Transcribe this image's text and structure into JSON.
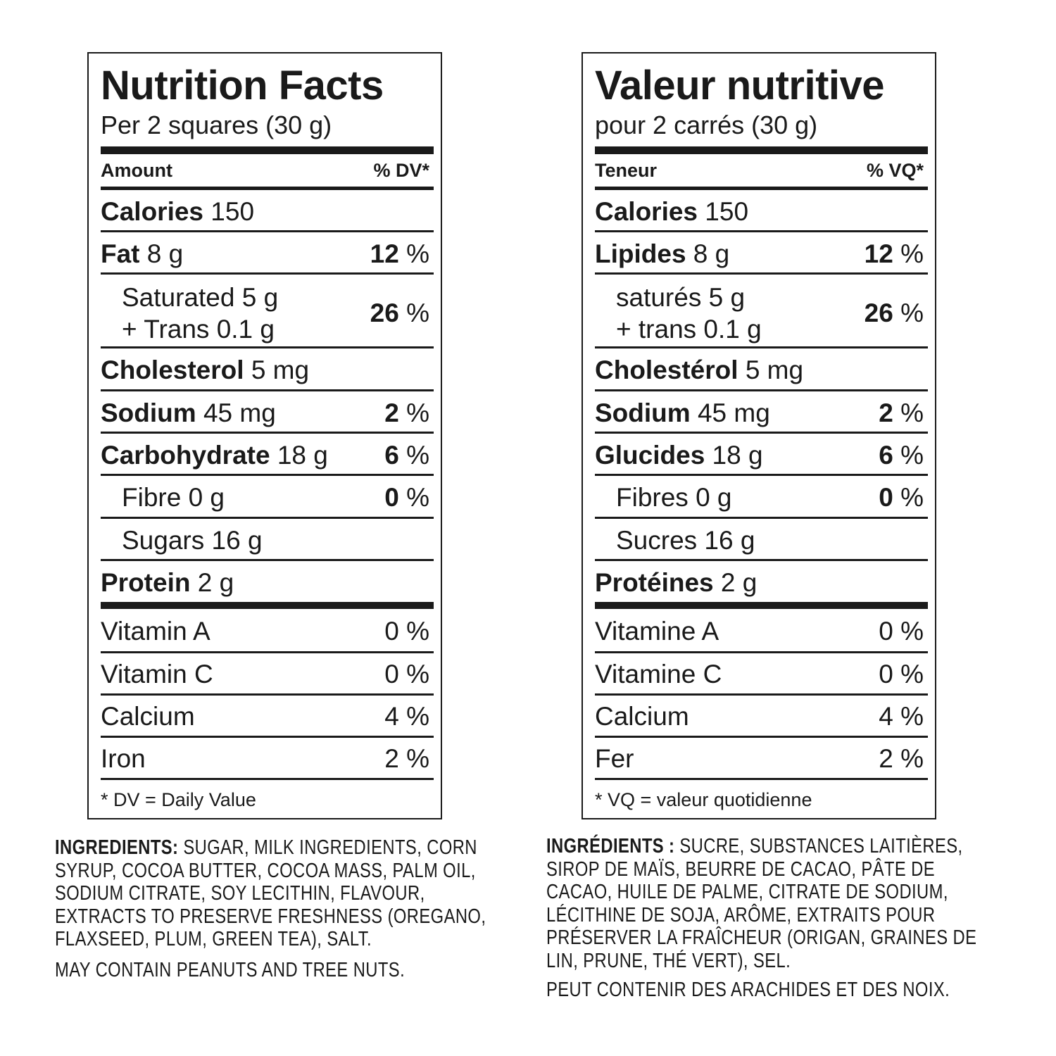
{
  "en": {
    "title": "Nutrition Facts",
    "serving": "Per 2 squares (30 g)",
    "amount_header": "Amount",
    "dv_header": "% DV*",
    "rows": [
      {
        "bold": "Calories",
        "rest": " 150",
        "pct_bold": "",
        "pct_rest": ""
      },
      {
        "bold": "Fat",
        "rest": " 8 g",
        "pct_bold": "12",
        "pct_rest": " %"
      },
      {
        "bold": "",
        "rest": "Saturated 5 g",
        "rest2": "+ Trans 0.1 g",
        "pct_bold": "26",
        "pct_rest": " %"
      },
      {
        "bold": "Cholesterol",
        "rest": " 5 mg",
        "pct_bold": "",
        "pct_rest": ""
      },
      {
        "bold": "Sodium",
        "rest": " 45 mg",
        "pct_bold": "2",
        "pct_rest": " %"
      },
      {
        "bold": "Carbohydrate",
        "rest": " 18 g",
        "pct_bold": "6",
        "pct_rest": " %"
      },
      {
        "bold": "",
        "rest": "Fibre 0 g",
        "pct_bold": "0",
        "pct_rest": " %"
      },
      {
        "bold": "",
        "rest": "Sugars 16 g",
        "pct_bold": "",
        "pct_rest": ""
      },
      {
        "bold": "Protein",
        "rest": " 2 g",
        "pct_bold": "",
        "pct_rest": ""
      },
      {
        "bold": "",
        "rest": "Vitamin A",
        "pct_bold": "",
        "pct_rest": "0 %"
      },
      {
        "bold": "",
        "rest": "Vitamin C",
        "pct_bold": "",
        "pct_rest": "0 %"
      },
      {
        "bold": "",
        "rest": "Calcium",
        "pct_bold": "",
        "pct_rest": "4 %"
      },
      {
        "bold": "",
        "rest": "Iron",
        "pct_bold": "",
        "pct_rest": "2 %"
      }
    ],
    "footnote": "* DV = Daily Value",
    "ingredients_lead": "INGREDIENTS:",
    "ingredients_lines": [
      " SUGAR, MILK INGREDIENTS, CORN",
      "SYRUP, COCOA BUTTER, COCOA MASS, PALM OIL,",
      "SODIUM CITRATE, SOY LECITHIN, FLAVOUR,",
      "EXTRACTS TO PRESERVE FRESHNESS (OREGANO,",
      "FLAXSEED, PLUM, GREEN TEA), SALT."
    ],
    "may_contain": "MAY CONTAIN PEANUTS AND TREE NUTS."
  },
  "fr": {
    "title": "Valeur nutritive",
    "serving": "pour 2 carrés (30 g)",
    "amount_header": "Teneur",
    "dv_header": "% VQ*",
    "rows": [
      {
        "bold": "Calories",
        "rest": " 150",
        "pct_bold": "",
        "pct_rest": ""
      },
      {
        "bold": "Lipides",
        "rest": " 8 g",
        "pct_bold": "12",
        "pct_rest": " %"
      },
      {
        "bold": "",
        "rest": "saturés 5 g",
        "rest2": "+ trans 0.1 g",
        "pct_bold": "26",
        "pct_rest": " %"
      },
      {
        "bold": "Cholestérol",
        "rest": " 5 mg",
        "pct_bold": "",
        "pct_rest": ""
      },
      {
        "bold": "Sodium",
        "rest": " 45 mg",
        "pct_bold": "2",
        "pct_rest": " %"
      },
      {
        "bold": "Glucides",
        "rest": " 18 g",
        "pct_bold": "6",
        "pct_rest": " %"
      },
      {
        "bold": "",
        "rest": "Fibres 0 g",
        "pct_bold": "0",
        "pct_rest": " %"
      },
      {
        "bold": "",
        "rest": "Sucres 16 g",
        "pct_bold": "",
        "pct_rest": ""
      },
      {
        "bold": "Protéines",
        "rest": " 2 g",
        "pct_bold": "",
        "pct_rest": ""
      },
      {
        "bold": "",
        "rest": "Vitamine A",
        "pct_bold": "",
        "pct_rest": "0 %"
      },
      {
        "bold": "",
        "rest": "Vitamine C",
        "pct_bold": "",
        "pct_rest": "0 %"
      },
      {
        "bold": "",
        "rest": "Calcium",
        "pct_bold": "",
        "pct_rest": "4 %"
      },
      {
        "bold": "",
        "rest": "Fer",
        "pct_bold": "",
        "pct_rest": "2 %"
      }
    ],
    "footnote": "* VQ = valeur quotidienne",
    "ingredients_lead": "INGRÉDIENTS :",
    "ingredients_lines": [
      " SUCRE, SUBSTANCES LAITIÈRES,",
      "SIROP DE MAÏS, BEURRE DE CACAO, PÂTE DE",
      "CACAO, HUILE DE PALME, CITRATE DE SODIUM,",
      "LÉCITHINE DE SOJA, ARÔME, EXTRAITS POUR",
      "PRÉSERVER LA FRAÎCHEUR (ORIGAN, GRAINES DE",
      "LIN, PRUNE, THÉ VERT), SEL."
    ],
    "may_contain": "PEUT CONTENIR DES ARACHIDES ET DES NOIX."
  }
}
